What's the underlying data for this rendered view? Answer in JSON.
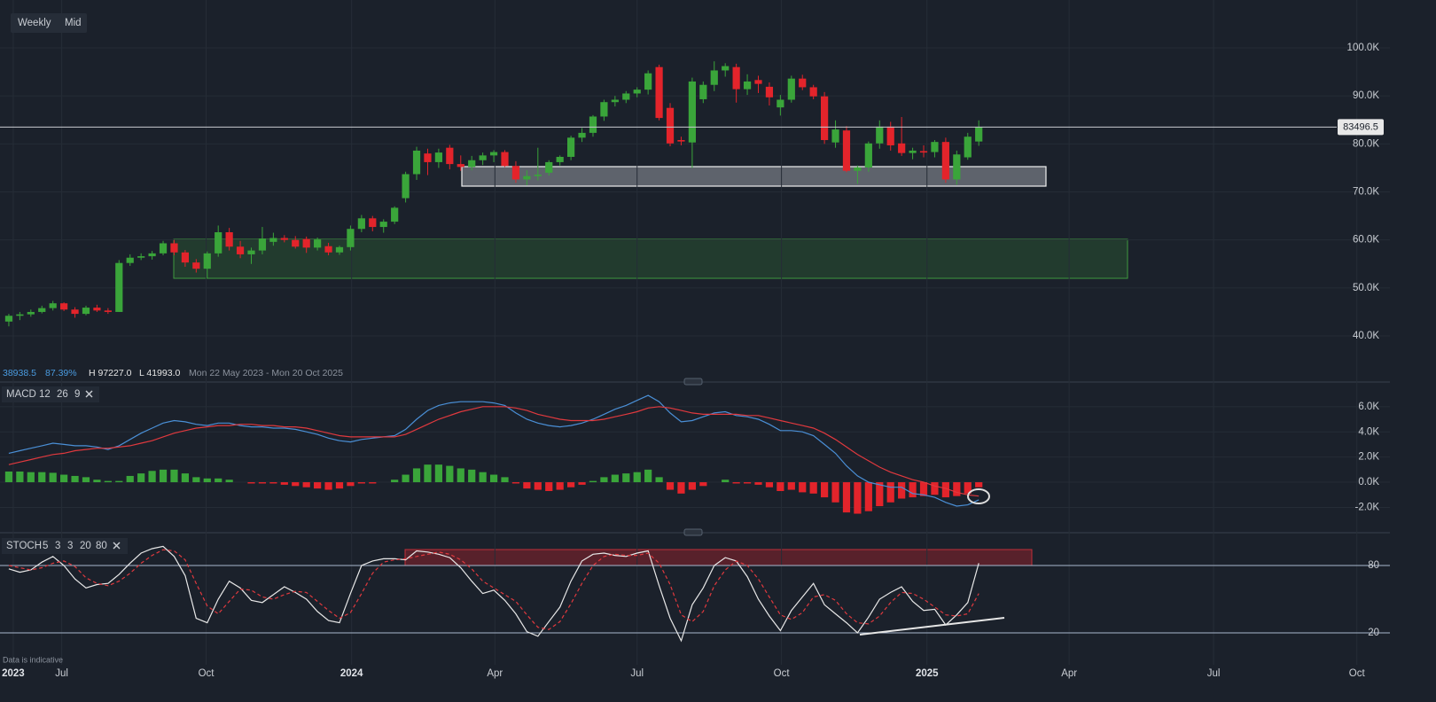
{
  "toolbar": [
    "Weekly",
    "Mid"
  ],
  "info": {
    "change": "38938.5",
    "change_pct": "87.39%",
    "high": "H 97227.0",
    "low": "L 41993.0",
    "range": "Mon 22 May 2023 - Mon 20 Oct 2025"
  },
  "note": "Data is indicative",
  "chart_data": [
    {
      "type": "candlestick",
      "x": [
        0,
        1,
        2,
        3,
        4,
        5,
        6,
        7,
        8,
        9,
        10,
        11,
        12,
        13,
        14,
        15,
        16,
        17,
        18,
        19,
        20,
        21,
        22,
        23,
        24,
        25,
        26,
        27,
        28,
        29,
        30,
        31,
        32,
        33,
        34,
        35,
        36,
        37,
        38,
        39,
        40,
        41,
        42,
        43,
        44,
        45,
        46,
        47,
        48,
        49,
        50,
        51,
        52,
        53,
        54,
        55,
        56,
        57,
        58,
        59,
        60,
        61,
        62,
        63,
        64,
        65,
        66,
        67,
        68,
        69,
        70,
        71,
        72,
        73,
        74,
        75,
        76,
        77,
        78,
        79,
        80,
        81,
        82,
        83,
        84,
        85,
        86,
        87,
        88
      ],
      "open": [
        43000,
        44200,
        44500,
        45000,
        45800,
        46800,
        45500,
        44600,
        45900,
        45300,
        45000,
        55200,
        56300,
        56600,
        57200,
        59300,
        57400,
        55300,
        54000,
        57200,
        61600,
        58600,
        57000,
        57800,
        59600,
        60400,
        60000,
        60200,
        58400,
        58700,
        57400,
        58500,
        62300,
        64500,
        62700,
        63800,
        68700,
        73700,
        78000,
        76200,
        79200,
        75800,
        75200,
        76600,
        77600,
        78300,
        75400,
        72600,
        73300,
        74000,
        76200,
        77300,
        81300,
        82300,
        85700,
        88700,
        89200,
        90500,
        91300,
        96000,
        87500,
        80800,
        80300,
        89300,
        92300,
        95300,
        96000,
        91400,
        93300,
        91900,
        87600,
        89200,
        93600,
        91800,
        89900,
        80300,
        82800,
        74400,
        75100,
        80100,
        83600,
        80100,
        78100,
        78500,
        78300,
        80400,
        72600,
        77200,
        80500
      ],
      "high": [
        44600,
        45000,
        45500,
        46300,
        47300,
        47000,
        46000,
        46300,
        46500,
        45800,
        55800,
        57000,
        57200,
        57700,
        59800,
        60000,
        57900,
        56000,
        57600,
        63000,
        62500,
        59800,
        58400,
        62700,
        61500,
        61000,
        60800,
        60700,
        60500,
        59400,
        58800,
        63000,
        65200,
        65000,
        64300,
        67000,
        74200,
        79400,
        79000,
        79000,
        79800,
        77600,
        77500,
        78200,
        78700,
        78700,
        76400,
        74500,
        79200,
        76600,
        77600,
        81700,
        83300,
        86000,
        89200,
        90000,
        91000,
        91800,
        95300,
        96500,
        88500,
        81500,
        93800,
        93000,
        97200,
        96800,
        96700,
        94500,
        94200,
        92800,
        90200,
        94200,
        94400,
        92300,
        90800,
        84900,
        83700,
        75500,
        80500,
        84900,
        84600,
        85600,
        79200,
        79700,
        80800,
        81300,
        78600,
        82300,
        84900
      ],
      "low": [
        42000,
        43300,
        44000,
        44700,
        45300,
        45200,
        43800,
        44300,
        45000,
        44600,
        45000,
        54600,
        55800,
        55900,
        56800,
        56800,
        54400,
        53200,
        52000,
        56500,
        57800,
        56200,
        55000,
        57000,
        58800,
        59500,
        58200,
        57300,
        57800,
        56800,
        56900,
        57800,
        61600,
        61800,
        61500,
        63300,
        67800,
        72500,
        73500,
        75000,
        74700,
        74400,
        74500,
        75600,
        76200,
        75200,
        71900,
        71400,
        72400,
        73400,
        75500,
        76600,
        80400,
        81500,
        84800,
        87800,
        88500,
        89700,
        90300,
        84900,
        79500,
        79700,
        75000,
        88500,
        91000,
        94000,
        88600,
        90200,
        90600,
        88000,
        85900,
        88600,
        91200,
        89300,
        80000,
        79200,
        74100,
        71700,
        74200,
        79000,
        78600,
        77500,
        76800,
        77200,
        77200,
        71900,
        71500,
        76700,
        79600
      ],
      "close": [
        44200,
        44500,
        45000,
        45800,
        46800,
        45500,
        44600,
        45900,
        45300,
        45000,
        55200,
        56300,
        56600,
        57200,
        59300,
        57400,
        55300,
        54000,
        57200,
        61600,
        58600,
        57000,
        57800,
        60300,
        60400,
        60000,
        58600,
        58400,
        60100,
        57400,
        58500,
        62300,
        64500,
        62700,
        63800,
        66700,
        73700,
        78600,
        76200,
        78200,
        75800,
        75200,
        76600,
        77600,
        78300,
        75400,
        72600,
        73300,
        73600,
        76200,
        77300,
        81300,
        82300,
        85700,
        88700,
        89200,
        90500,
        91300,
        94700,
        85400,
        80100,
        80500,
        93000,
        92300,
        95300,
        96200,
        91400,
        93000,
        92500,
        89700,
        89200,
        93600,
        91800,
        89900,
        80800,
        83000,
        74400,
        75100,
        80100,
        83600,
        79700,
        78100,
        78600,
        78200,
        80400,
        72600,
        77800,
        81500,
        83500
      ],
      "up_color": "#3aa53a",
      "down_color": "#e3242b",
      "last_price": 83496.5,
      "xlim": [
        -0.8,
        125.3
      ],
      "xticks": [
        {
          "value": 0.4,
          "label": "2023"
        },
        {
          "value": 4.8,
          "label": "Jul"
        },
        {
          "value": 17.9,
          "label": "Oct"
        },
        {
          "value": 31.1,
          "label": "2024"
        },
        {
          "value": 44.1,
          "label": "Apr"
        },
        {
          "value": 57.0,
          "label": "Jul"
        },
        {
          "value": 70.1,
          "label": "Oct"
        },
        {
          "value": 83.3,
          "label": "2025"
        },
        {
          "value": 96.2,
          "label": "Apr"
        },
        {
          "value": 109.3,
          "label": "Jul"
        },
        {
          "value": 122.3,
          "label": "Oct"
        }
      ],
      "ylim": [
        30590,
        109970
      ],
      "yticks": [
        {
          "value": 40000,
          "label": "40.0K"
        },
        {
          "value": 50000,
          "label": "50.0K"
        },
        {
          "value": 60000,
          "label": "60.0K"
        },
        {
          "value": 70000,
          "label": "70.0K"
        },
        {
          "value": 80000,
          "label": "80.0K"
        },
        {
          "value": 90000,
          "label": "90.0K"
        },
        {
          "value": 100000,
          "label": "100.0K"
        }
      ],
      "grid_color": "#252c36"
    },
    {
      "type": "combo",
      "title": "MACD",
      "params": [
        12,
        26,
        9
      ],
      "x": [
        0,
        1,
        2,
        3,
        4,
        5,
        6,
        7,
        8,
        9,
        10,
        11,
        12,
        13,
        14,
        15,
        16,
        17,
        18,
        19,
        20,
        21,
        22,
        23,
        24,
        25,
        26,
        27,
        28,
        29,
        30,
        31,
        32,
        33,
        34,
        35,
        36,
        37,
        38,
        39,
        40,
        41,
        42,
        43,
        44,
        45,
        46,
        47,
        48,
        49,
        50,
        51,
        52,
        53,
        54,
        55,
        56,
        57,
        58,
        59,
        60,
        61,
        62,
        63,
        64,
        65,
        66,
        67,
        68,
        69,
        70,
        71,
        72,
        73,
        74,
        75,
        76,
        77,
        78,
        79,
        80,
        81,
        82,
        83,
        84,
        85,
        86,
        87,
        88
      ],
      "series": [
        {
          "type": "bar",
          "up_color": "#3aa53a",
          "down_color": "#e3242b",
          "values": [
            850,
            850,
            800,
            800,
            750,
            600,
            500,
            400,
            200,
            100,
            100,
            500,
            700,
            900,
            1000,
            1000,
            700,
            400,
            300,
            300,
            200,
            0,
            -100,
            -100,
            -100,
            -200,
            -300,
            -400,
            -500,
            -600,
            -500,
            -300,
            -100,
            -100,
            0,
            200,
            600,
            1100,
            1400,
            1400,
            1300,
            1100,
            1000,
            800,
            600,
            400,
            -100,
            -500,
            -600,
            -700,
            -600,
            -400,
            -200,
            100,
            400,
            600,
            700,
            800,
            1000,
            400,
            -600,
            -900,
            -600,
            -300,
            0,
            200,
            -100,
            -100,
            -200,
            -400,
            -700,
            -600,
            -800,
            -900,
            -1200,
            -1600,
            -2400,
            -2500,
            -2300,
            -1900,
            -1600,
            -1300,
            -1200,
            -1100,
            -1000,
            -1200,
            -1100,
            -900,
            -400
          ]
        },
        {
          "type": "line",
          "color": "#4a8fd6",
          "values": [
            2300,
            2500,
            2700,
            2900,
            3100,
            3000,
            2900,
            2900,
            2800,
            2600,
            2900,
            3400,
            3900,
            4300,
            4700,
            4900,
            4800,
            4600,
            4500,
            4700,
            4700,
            4500,
            4400,
            4400,
            4300,
            4300,
            4200,
            4000,
            3800,
            3500,
            3300,
            3200,
            3400,
            3500,
            3600,
            3700,
            4200,
            5000,
            5700,
            6100,
            6300,
            6400,
            6400,
            6400,
            6300,
            6100,
            5500,
            5000,
            4700,
            4500,
            4400,
            4500,
            4700,
            5000,
            5400,
            5800,
            6100,
            6500,
            6900,
            6400,
            5500,
            4800,
            4900,
            5200,
            5500,
            5600,
            5300,
            5200,
            5000,
            4600,
            4100,
            4100,
            4000,
            3700,
            3000,
            2300,
            1300,
            500,
            0,
            -200,
            -400,
            -400,
            -900,
            -1000,
            -1200,
            -1600,
            -1900,
            -1800,
            -1400
          ]
        },
        {
          "type": "line",
          "color": "#e0393e",
          "values": [
            1400,
            1600,
            1800,
            2000,
            2200,
            2300,
            2500,
            2600,
            2700,
            2700,
            2800,
            2900,
            3100,
            3300,
            3600,
            3900,
            4100,
            4300,
            4400,
            4500,
            4500,
            4600,
            4600,
            4500,
            4500,
            4400,
            4400,
            4300,
            4100,
            3900,
            3700,
            3600,
            3600,
            3600,
            3600,
            3600,
            3800,
            4200,
            4600,
            5000,
            5300,
            5600,
            5800,
            6000,
            6000,
            6000,
            5900,
            5700,
            5400,
            5200,
            5000,
            4900,
            4900,
            4900,
            5000,
            5200,
            5400,
            5600,
            5900,
            6000,
            5900,
            5700,
            5500,
            5400,
            5400,
            5400,
            5400,
            5300,
            5300,
            5100,
            4900,
            4700,
            4500,
            4300,
            3900,
            3400,
            2800,
            2200,
            1700,
            1200,
            800,
            500,
            200,
            0,
            -300,
            -500,
            -800,
            -1000,
            -1100
          ]
        }
      ],
      "ylim": [
        -3940,
        7820
      ],
      "yticks": [
        {
          "value": -2000,
          "label": "-2.0K"
        },
        {
          "value": 0,
          "label": "0.0K"
        },
        {
          "value": 2000,
          "label": "2.0K"
        },
        {
          "value": 4000,
          "label": "4.0K"
        },
        {
          "value": 6000,
          "label": "6.0K"
        }
      ],
      "grid_color": "#252c36"
    },
    {
      "type": "line",
      "title": "STOCH",
      "params": [
        5,
        3,
        3,
        20,
        80
      ],
      "x": [
        0,
        1,
        2,
        3,
        4,
        5,
        6,
        7,
        8,
        9,
        10,
        11,
        12,
        13,
        14,
        15,
        16,
        17,
        18,
        19,
        20,
        21,
        22,
        23,
        24,
        25,
        26,
        27,
        28,
        29,
        30,
        31,
        32,
        33,
        34,
        35,
        36,
        37,
        38,
        39,
        40,
        41,
        42,
        43,
        44,
        45,
        46,
        47,
        48,
        49,
        50,
        51,
        52,
        53,
        54,
        55,
        56,
        57,
        58,
        59,
        60,
        61,
        62,
        63,
        64,
        65,
        66,
        67,
        68,
        69,
        70,
        71,
        72,
        73,
        74,
        75,
        76,
        77,
        78,
        79,
        80,
        81,
        82,
        83,
        84,
        85,
        86,
        87,
        88
      ],
      "series": [
        {
          "color": "#e8e8e8",
          "dashed": false,
          "values": [
            77,
            74,
            76,
            83,
            88,
            80,
            68,
            60,
            63,
            64,
            72,
            82,
            91,
            95,
            97,
            88,
            71,
            33,
            29,
            50,
            66,
            60,
            49,
            47,
            54,
            61,
            56,
            50,
            39,
            31,
            29,
            55,
            80,
            84,
            86,
            86,
            85,
            93,
            92,
            90,
            87,
            78,
            66,
            55,
            58,
            49,
            37,
            21,
            17,
            30,
            43,
            66,
            84,
            90,
            91,
            89,
            88,
            91,
            93,
            62,
            33,
            13,
            45,
            60,
            80,
            87,
            84,
            70,
            50,
            35,
            22,
            40,
            52,
            64,
            45,
            37,
            29,
            20,
            34,
            50,
            56,
            61,
            48,
            40,
            41,
            27,
            36,
            47,
            82
          ]
        },
        {
          "color": "#e0393e",
          "dashed": true,
          "values": [
            80,
            78,
            76,
            78,
            82,
            84,
            79,
            69,
            64,
            62,
            66,
            73,
            82,
            89,
            94,
            93,
            85,
            64,
            44,
            37,
            48,
            59,
            58,
            52,
            50,
            54,
            57,
            56,
            48,
            40,
            33,
            38,
            55,
            73,
            83,
            85,
            86,
            88,
            90,
            92,
            90,
            85,
            77,
            66,
            60,
            54,
            48,
            36,
            25,
            23,
            30,
            46,
            64,
            80,
            88,
            90,
            89,
            89,
            91,
            82,
            63,
            36,
            30,
            39,
            62,
            76,
            84,
            80,
            68,
            52,
            36,
            32,
            38,
            52,
            54,
            49,
            37,
            29,
            28,
            35,
            47,
            56,
            55,
            50,
            43,
            36,
            35,
            37,
            55
          ]
        }
      ],
      "ylim": [
        -8.4,
        106.8
      ],
      "yticks": [
        20,
        80
      ],
      "grid_color": "#a9b7cc"
    }
  ]
}
